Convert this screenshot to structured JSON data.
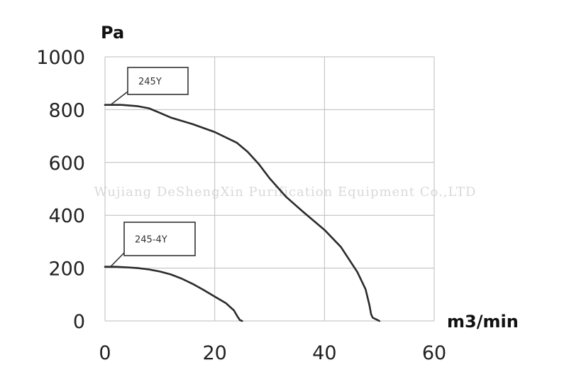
{
  "chart_data": {
    "type": "line",
    "title": "",
    "xlabel": "m3/min",
    "ylabel": "Pa",
    "xlim": [
      0,
      60
    ],
    "ylim": [
      0,
      1000
    ],
    "x_ticks": [
      "0",
      "20",
      "40",
      "60"
    ],
    "y_ticks": [
      "0",
      "200",
      "400",
      "600",
      "800",
      "1000"
    ],
    "grid": true,
    "legend": "none",
    "watermark": "Wujiang DeShengXin Purification Equipment Co.,LTD",
    "series": [
      {
        "name": "245Y",
        "x": [
          0,
          3,
          6,
          8,
          10,
          12,
          16,
          20,
          24,
          26,
          28,
          30,
          33,
          36,
          40,
          43,
          46,
          47.5,
          48.2,
          48.5,
          48.8,
          49.5,
          50
        ],
        "y": [
          818,
          818,
          813,
          805,
          788,
          770,
          745,
          715,
          675,
          640,
          595,
          540,
          470,
          415,
          345,
          280,
          185,
          120,
          60,
          25,
          12,
          5,
          0
        ]
      },
      {
        "name": "245-4Y",
        "x": [
          0,
          2,
          4,
          6,
          8,
          10,
          12,
          14,
          16,
          18,
          20,
          22,
          23.5,
          24.2,
          24.6,
          25
        ],
        "y": [
          205,
          205,
          203,
          200,
          195,
          187,
          176,
          160,
          140,
          117,
          92,
          68,
          40,
          15,
          3,
          0
        ]
      }
    ],
    "annotations": [
      {
        "text": "245Y",
        "series": "245Y",
        "at_x": 1,
        "at_y": 818
      },
      {
        "text": "245-4Y",
        "series": "245-4Y",
        "at_x": 1,
        "at_y": 205
      }
    ]
  }
}
